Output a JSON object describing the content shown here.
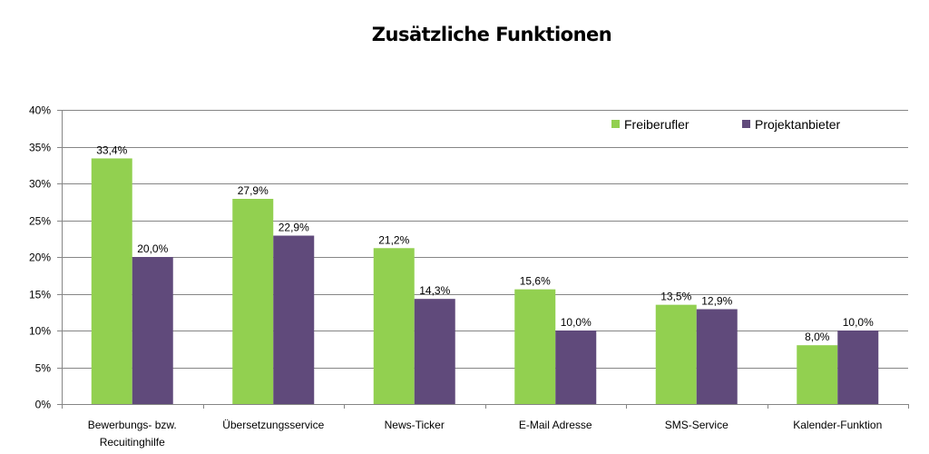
{
  "chart_data": {
    "type": "bar",
    "title": "Zusätzliche Funktionen",
    "xlabel": "",
    "ylabel": "",
    "ylim": [
      0,
      40
    ],
    "y_ticks": [
      "0%",
      "5%",
      "10%",
      "15%",
      "20%",
      "25%",
      "30%",
      "35%",
      "40%"
    ],
    "y_tick_values": [
      0,
      5,
      10,
      15,
      20,
      25,
      30,
      35,
      40
    ],
    "grid": true,
    "legend_position": "top-right",
    "categories": [
      [
        "Bewerbungs- bzw.",
        "Recuitinghilfe"
      ],
      [
        "Übersetzungsservice"
      ],
      [
        "News-Ticker"
      ],
      [
        "E-Mail Adresse"
      ],
      [
        "SMS-Service"
      ],
      [
        "Kalender-Funktion"
      ]
    ],
    "series": [
      {
        "name": "Freiberufler",
        "color": "#92D050",
        "values": [
          33.4,
          27.9,
          21.2,
          15.6,
          13.5,
          8.0
        ],
        "labels": [
          "33,4%",
          "27,9%",
          "21,2%",
          "15,6%",
          "13,5%",
          "8,0%"
        ]
      },
      {
        "name": "Projektanbieter",
        "color": "#604A7B",
        "values": [
          20.0,
          22.9,
          14.3,
          10.0,
          12.9,
          10.0
        ],
        "labels": [
          "20,0%",
          "22,9%",
          "14,3%",
          "10,0%",
          "12,9%",
          "10,0%"
        ]
      }
    ]
  }
}
